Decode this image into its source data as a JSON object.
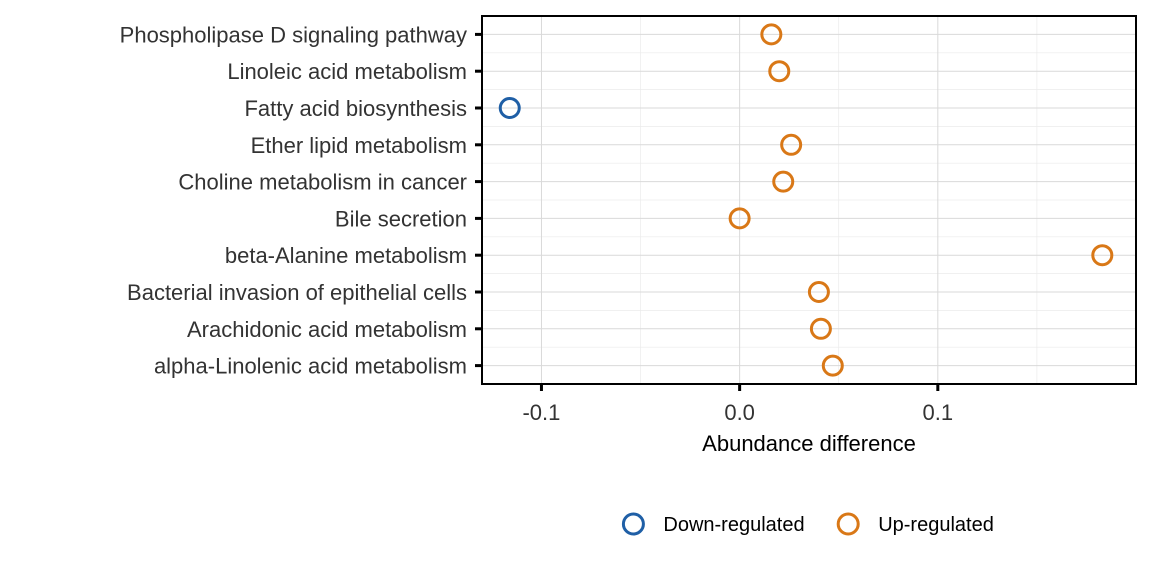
{
  "chart_data": {
    "type": "scatter",
    "title": "",
    "xlabel": "Abundance difference",
    "ylabel": "",
    "xlim": [
      -0.13,
      0.2
    ],
    "x_ticks": [
      -0.1,
      0.0,
      0.1
    ],
    "x_tick_labels": [
      "-0.1",
      "0.0",
      "0.1"
    ],
    "categories": [
      "alpha-Linolenic acid metabolism",
      "Arachidonic acid metabolism",
      "Bacterial invasion of epithelial cells",
      "beta-Alanine metabolism",
      "Bile secretion",
      "Choline metabolism in cancer",
      "Ether lipid metabolism",
      "Fatty acid biosynthesis",
      "Linoleic acid metabolism",
      "Phospholipase D signaling pathway"
    ],
    "series": [
      {
        "name": "Down-regulated",
        "color": "#1f5fa6",
        "points": [
          {
            "category": "Fatty acid biosynthesis",
            "value": -0.116
          }
        ]
      },
      {
        "name": "Up-regulated",
        "color": "#d97817",
        "points": [
          {
            "category": "alpha-Linolenic acid metabolism",
            "value": 0.047
          },
          {
            "category": "Arachidonic acid metabolism",
            "value": 0.041
          },
          {
            "category": "Bacterial invasion of epithelial cells",
            "value": 0.04
          },
          {
            "category": "beta-Alanine metabolism",
            "value": 0.183
          },
          {
            "category": "Bile secretion",
            "value": 0.0
          },
          {
            "category": "Choline metabolism in cancer",
            "value": 0.022
          },
          {
            "category": "Ether lipid metabolism",
            "value": 0.026
          },
          {
            "category": "Linoleic acid metabolism",
            "value": 0.02
          },
          {
            "category": "Phospholipase D signaling pathway",
            "value": 0.016
          }
        ]
      }
    ],
    "grid": true,
    "legend_position": "bottom"
  }
}
